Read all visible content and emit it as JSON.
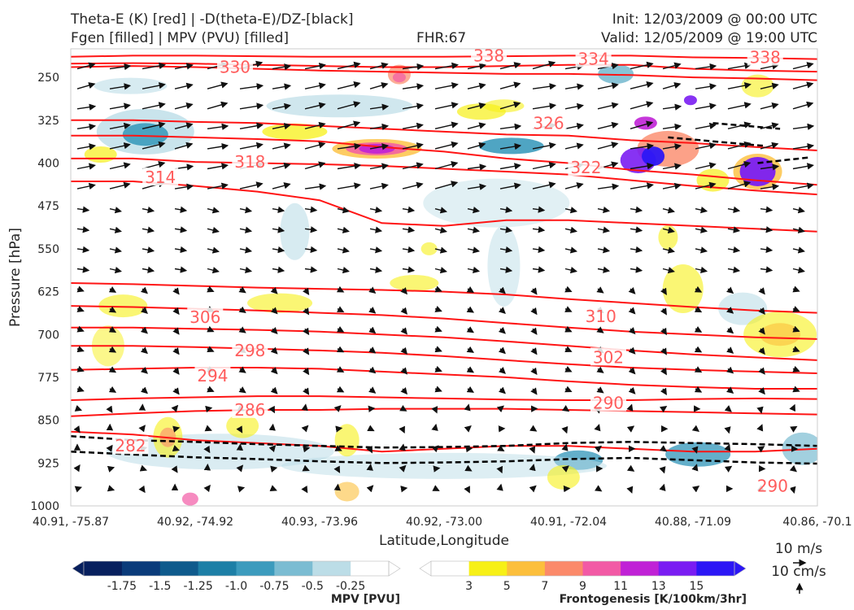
{
  "header": {
    "title_left_1": "Theta-E (K) [red] | -D(theta-E)/DZ-[black]",
    "title_left_2": "Fgen [filled] | MPV (PVU) [filled]",
    "title_center": "FHR:67",
    "title_right_1": "Init: 12/03/2009 @ 00:00 UTC",
    "title_right_2": "Valid: 12/05/2009 @ 19:00 UTC"
  },
  "chart_data": {
    "type": "cross-section",
    "ylabel": "Pressure [hPa]",
    "xlabel": "Latitude,Longitude",
    "y_scale": "linear, inverted",
    "ylim": [
      1000,
      200
    ],
    "y_ticks": [
      "250",
      "325",
      "400",
      "475",
      "550",
      "625",
      "700",
      "775",
      "850",
      "925",
      "1000"
    ],
    "x_ticks": [
      "40.91, -75.87",
      "40.92, -74.92",
      "40.93, -73.96",
      "40.92, -73.00",
      "40.91, -72.04",
      "40.88, -71.09",
      "40.86, -70.1"
    ],
    "theta_e_contours": [
      {
        "label": "282",
        "p": [
          870,
          875,
          885,
          890,
          895,
          905,
          900,
          895,
          895,
          900,
          905,
          905,
          900
        ]
      },
      {
        "label": "286",
        "p": [
          843,
          838,
          834,
          832,
          832,
          830,
          830,
          830,
          832,
          834,
          836,
          838,
          840
        ]
      },
      {
        "label": "290",
        "p": [
          815,
          812,
          810,
          808,
          808,
          810,
          812,
          814,
          815,
          815,
          813,
          812,
          813
        ]
      },
      {
        "label": "294",
        "p": [
          762,
          760,
          758,
          758,
          760,
          765,
          770,
          775,
          782,
          788,
          792,
          795,
          795
        ]
      },
      {
        "label": "298",
        "p": [
          720,
          720,
          722,
          725,
          728,
          732,
          738,
          745,
          752,
          758,
          762,
          765,
          768
        ]
      },
      {
        "label": "302",
        "p": [
          688,
          688,
          690,
          692,
          695,
          700,
          705,
          712,
          720,
          728,
          735,
          740,
          745
        ]
      },
      {
        "label": "306",
        "p": [
          650,
          652,
          655,
          658,
          662,
          666,
          672,
          680,
          688,
          695,
          700,
          705,
          708
        ]
      },
      {
        "label": "310",
        "p": [
          610,
          612,
          615,
          618,
          620,
          622,
          625,
          630,
          638,
          645,
          652,
          658,
          662
        ]
      },
      {
        "label": "314",
        "p": [
          432,
          432,
          440,
          450,
          465,
          505,
          510,
          500,
          500,
          505,
          510,
          515,
          520
        ]
      },
      {
        "label": "318",
        "p": [
          392,
          392,
          398,
          400,
          402,
          405,
          410,
          415,
          420,
          430,
          440,
          448,
          455
        ]
      },
      {
        "label": "322",
        "p": [
          352,
          352,
          355,
          358,
          362,
          372,
          380,
          392,
          400,
          412,
          420,
          430,
          438
        ]
      },
      {
        "label": "326",
        "p": [
          325,
          325,
          328,
          330,
          335,
          340,
          345,
          350,
          352,
          360,
          365,
          372,
          378
        ]
      },
      {
        "label": "330",
        "p": [
          232,
          230,
          232,
          235,
          238,
          240,
          242,
          244,
          244,
          246,
          250,
          252,
          255
        ]
      },
      {
        "label": "334",
        "p": [
          226,
          225,
          226,
          228,
          230,
          232,
          232,
          230,
          228,
          228,
          235,
          238,
          240
        ]
      },
      {
        "label": "338",
        "p": [
          214,
          212,
          212,
          213,
          214,
          214,
          214,
          213,
          212,
          212,
          215,
          216,
          218
        ]
      }
    ],
    "theta_e_labels_shown": [
      "330",
      "338",
      "334",
      "338",
      "326",
      "318",
      "322",
      "314",
      "306",
      "310",
      "298",
      "302",
      "294",
      "290",
      "286",
      "282",
      "290"
    ],
    "stability_contours_black_dashed": [
      {
        "p": [
          878,
          885,
          888,
          892,
          895,
          898,
          897,
          895,
          890,
          888,
          890,
          892,
          895
        ]
      },
      {
        "p": [
          905,
          910,
          915,
          918,
          922,
          925,
          924,
          922,
          918,
          916,
          920,
          924,
          926
        ]
      }
    ],
    "mpv_colorbar": {
      "title": "MPV [PVU]",
      "levels": [
        "-1.75",
        "-1.5",
        "-1.25",
        "-1.0",
        "-0.75",
        "-0.5",
        "-0.25"
      ],
      "colors": [
        "#08205e",
        "#0b3b7a",
        "#0f5a8c",
        "#1d7fa6",
        "#3c9bbd",
        "#7bbcd2",
        "#bcdde7",
        "#ffffff"
      ]
    },
    "fgen_colorbar": {
      "title": "Frontogenesis [K/100km/3hr]",
      "levels": [
        "3",
        "5",
        "7",
        "9",
        "11",
        "13",
        "15"
      ],
      "colors": [
        "#ffffff",
        "#f7f017",
        "#fcbf3c",
        "#fb8a6a",
        "#f25aa5",
        "#c022d6",
        "#7a1df2",
        "#2c17f5"
      ]
    },
    "wind_quiver_key": {
      "label_top": "10 m/s",
      "label_bottom": "10 cm/s"
    }
  }
}
